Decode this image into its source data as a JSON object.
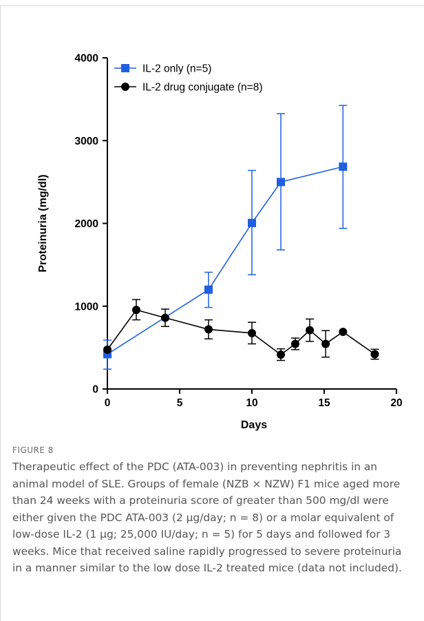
{
  "figure": {
    "label": "FIGURE 8",
    "caption": "Therapeutic effect of the PDC (ATA-003) in preventing nephritis in an animal model of SLE. Groups of female (NZB × NZW) F1 mice aged more than 24 weeks with a proteinuria score of greater than 500 mg/dl were either given the PDC ATA-003 (2 µg/day; n = 8) or a molar equivalent of low-dose IL-2 (1 µg; 25,000 IU/day; n = 5) for 5 days and followed for 3 weeks. Mice that received saline rapidly progressed to severe proteinuria in a manner similar to the low dose IL-2 treated mice (data not included)."
  },
  "chart_data": {
    "type": "line",
    "xlabel": "Days",
    "ylabel": "Proteinuria (mg/dl)",
    "xlim": [
      0,
      20
    ],
    "ylim": [
      0,
      4000
    ],
    "xticks": [
      0,
      5,
      10,
      15,
      20
    ],
    "yticks": [
      0,
      1000,
      2000,
      3000,
      4000
    ],
    "grid": false,
    "legend_position": "top-left",
    "series": [
      {
        "name": "IL-2 only (n=5)",
        "color": "#1f5fe0",
        "marker": "square",
        "points": [
          {
            "x": 0,
            "y": 420,
            "err_low": 240,
            "err_high": 590
          },
          {
            "x": 7,
            "y": 1200,
            "err_low": 985,
            "err_high": 1410
          },
          {
            "x": 10,
            "y": 2005,
            "err_low": 1380,
            "err_high": 2640
          },
          {
            "x": 12,
            "y": 2500,
            "err_low": 1680,
            "err_high": 3325
          },
          {
            "x": 16.3,
            "y": 2685,
            "err_low": 1940,
            "err_high": 3425
          }
        ]
      },
      {
        "name": "IL-2 drug conjugate (n=8)",
        "color": "#000000",
        "marker": "circle",
        "points": [
          {
            "x": 0,
            "y": 475,
            "err_low": 475,
            "err_high": 475
          },
          {
            "x": 2,
            "y": 955,
            "err_low": 835,
            "err_high": 1080
          },
          {
            "x": 4,
            "y": 860,
            "err_low": 755,
            "err_high": 965
          },
          {
            "x": 7,
            "y": 720,
            "err_low": 605,
            "err_high": 835
          },
          {
            "x": 10,
            "y": 675,
            "err_low": 545,
            "err_high": 805
          },
          {
            "x": 12,
            "y": 415,
            "err_low": 345,
            "err_high": 485
          },
          {
            "x": 13,
            "y": 545,
            "err_low": 475,
            "err_high": 615
          },
          {
            "x": 14,
            "y": 710,
            "err_low": 575,
            "err_high": 845
          },
          {
            "x": 15.1,
            "y": 545,
            "err_low": 385,
            "err_high": 705
          },
          {
            "x": 16.3,
            "y": 690,
            "err_low": 690,
            "err_high": 690
          },
          {
            "x": 18.5,
            "y": 420,
            "err_low": 360,
            "err_high": 480
          }
        ]
      }
    ]
  }
}
